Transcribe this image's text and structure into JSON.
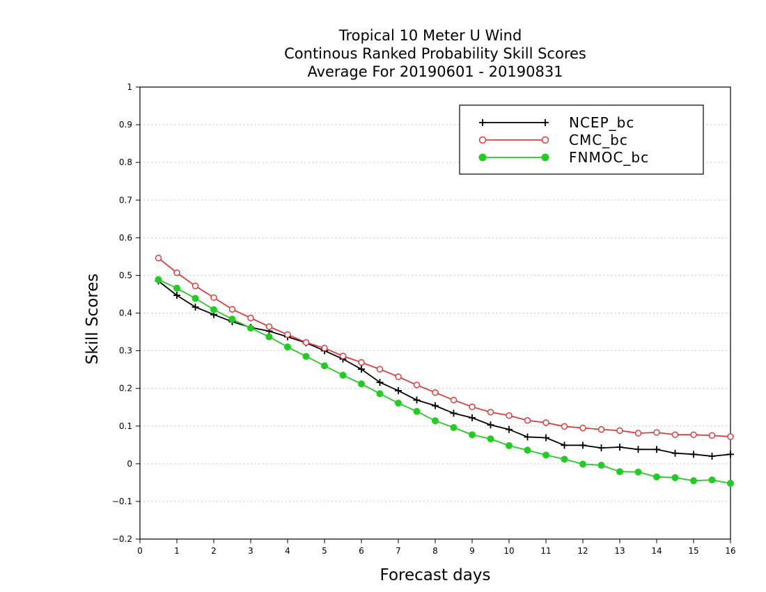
{
  "chart_data": {
    "type": "line",
    "title_lines": [
      "Tropical 10 Meter U Wind",
      "Continous Ranked Probability Skill Scores",
      "Average For 20190601 - 20190831"
    ],
    "xlabel": "Forecast days",
    "ylabel": "Skill Scores",
    "xlim": [
      0,
      16
    ],
    "ylim": [
      -0.2,
      1
    ],
    "xticks": [
      "0",
      "1",
      "2",
      "3",
      "4",
      "5",
      "6",
      "7",
      "8",
      "9",
      "10",
      "11",
      "12",
      "13",
      "14",
      "15",
      "16"
    ],
    "yticks": [
      "1",
      "0.9",
      "0.8",
      "0.7",
      "0.6",
      "0.5",
      "0.4",
      "0.3",
      "0.2",
      "0.1",
      "0",
      "−0.1",
      "−0.2"
    ],
    "grid": "horizontal dotted",
    "legend_position": "top-right",
    "x": [
      0.5,
      1,
      1.5,
      2,
      2.5,
      3,
      3.5,
      4,
      4.5,
      5,
      5.5,
      6,
      6.5,
      7,
      7.5,
      8,
      8.5,
      9,
      9.5,
      10,
      10.5,
      11,
      11.5,
      12,
      12.5,
      13,
      13.5,
      14,
      14.5,
      15,
      15.5,
      16
    ],
    "series": [
      {
        "name": "NCEP_bc",
        "color": "#000000",
        "marker": "plus",
        "values": [
          0.485,
          0.447,
          0.416,
          0.396,
          0.377,
          0.362,
          0.352,
          0.337,
          0.321,
          0.3,
          0.278,
          0.251,
          0.216,
          0.194,
          0.169,
          0.154,
          0.134,
          0.122,
          0.103,
          0.091,
          0.071,
          0.069,
          0.049,
          0.049,
          0.042,
          0.044,
          0.038,
          0.038,
          0.028,
          0.025,
          0.02,
          0.025
        ]
      },
      {
        "name": "CMC_bc",
        "color": "#e03c3c",
        "marker": "open-circle",
        "values": [
          0.546,
          0.507,
          0.472,
          0.441,
          0.41,
          0.387,
          0.364,
          0.343,
          0.322,
          0.307,
          0.286,
          0.269,
          0.251,
          0.231,
          0.209,
          0.189,
          0.169,
          0.151,
          0.137,
          0.128,
          0.115,
          0.109,
          0.099,
          0.095,
          0.091,
          0.088,
          0.081,
          0.083,
          0.077,
          0.077,
          0.075,
          0.072
        ]
      },
      {
        "name": "FNMOC_bc",
        "color": "#22cc22",
        "marker": "filled-circle",
        "values": [
          0.489,
          0.466,
          0.439,
          0.409,
          0.384,
          0.36,
          0.337,
          0.31,
          0.285,
          0.26,
          0.235,
          0.212,
          0.186,
          0.161,
          0.139,
          0.114,
          0.096,
          0.077,
          0.066,
          0.048,
          0.036,
          0.023,
          0.012,
          -0.001,
          -0.004,
          -0.021,
          -0.022,
          -0.035,
          -0.037,
          -0.045,
          -0.043,
          -0.052
        ]
      }
    ]
  }
}
